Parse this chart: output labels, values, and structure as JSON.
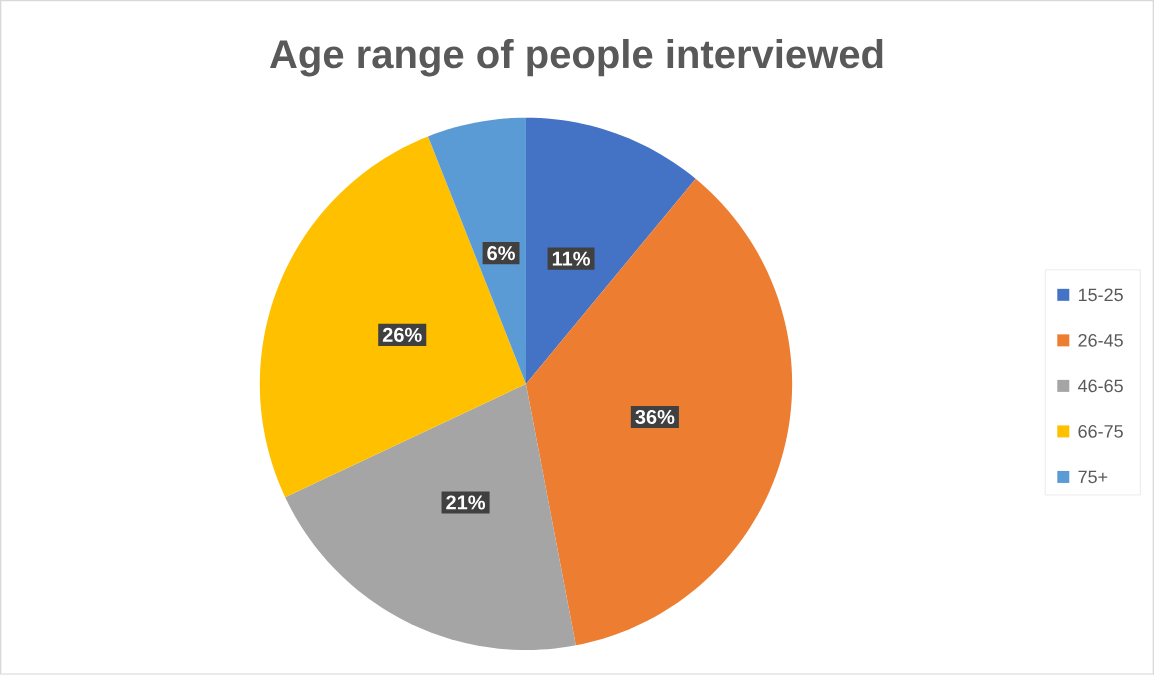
{
  "chart_data": {
    "type": "pie",
    "title": "Age range of people interviewed",
    "categories": [
      "15-25",
      "26-45",
      "46-65",
      "66-75",
      "75+"
    ],
    "values": [
      11,
      36,
      21,
      26,
      6
    ],
    "colors": [
      "#4472c4",
      "#ed7d31",
      "#a5a5a5",
      "#ffc000",
      "#5b9bd5"
    ],
    "value_labels": [
      "11%",
      "36%",
      "21%",
      "26%",
      "6%"
    ],
    "legend": "right"
  }
}
